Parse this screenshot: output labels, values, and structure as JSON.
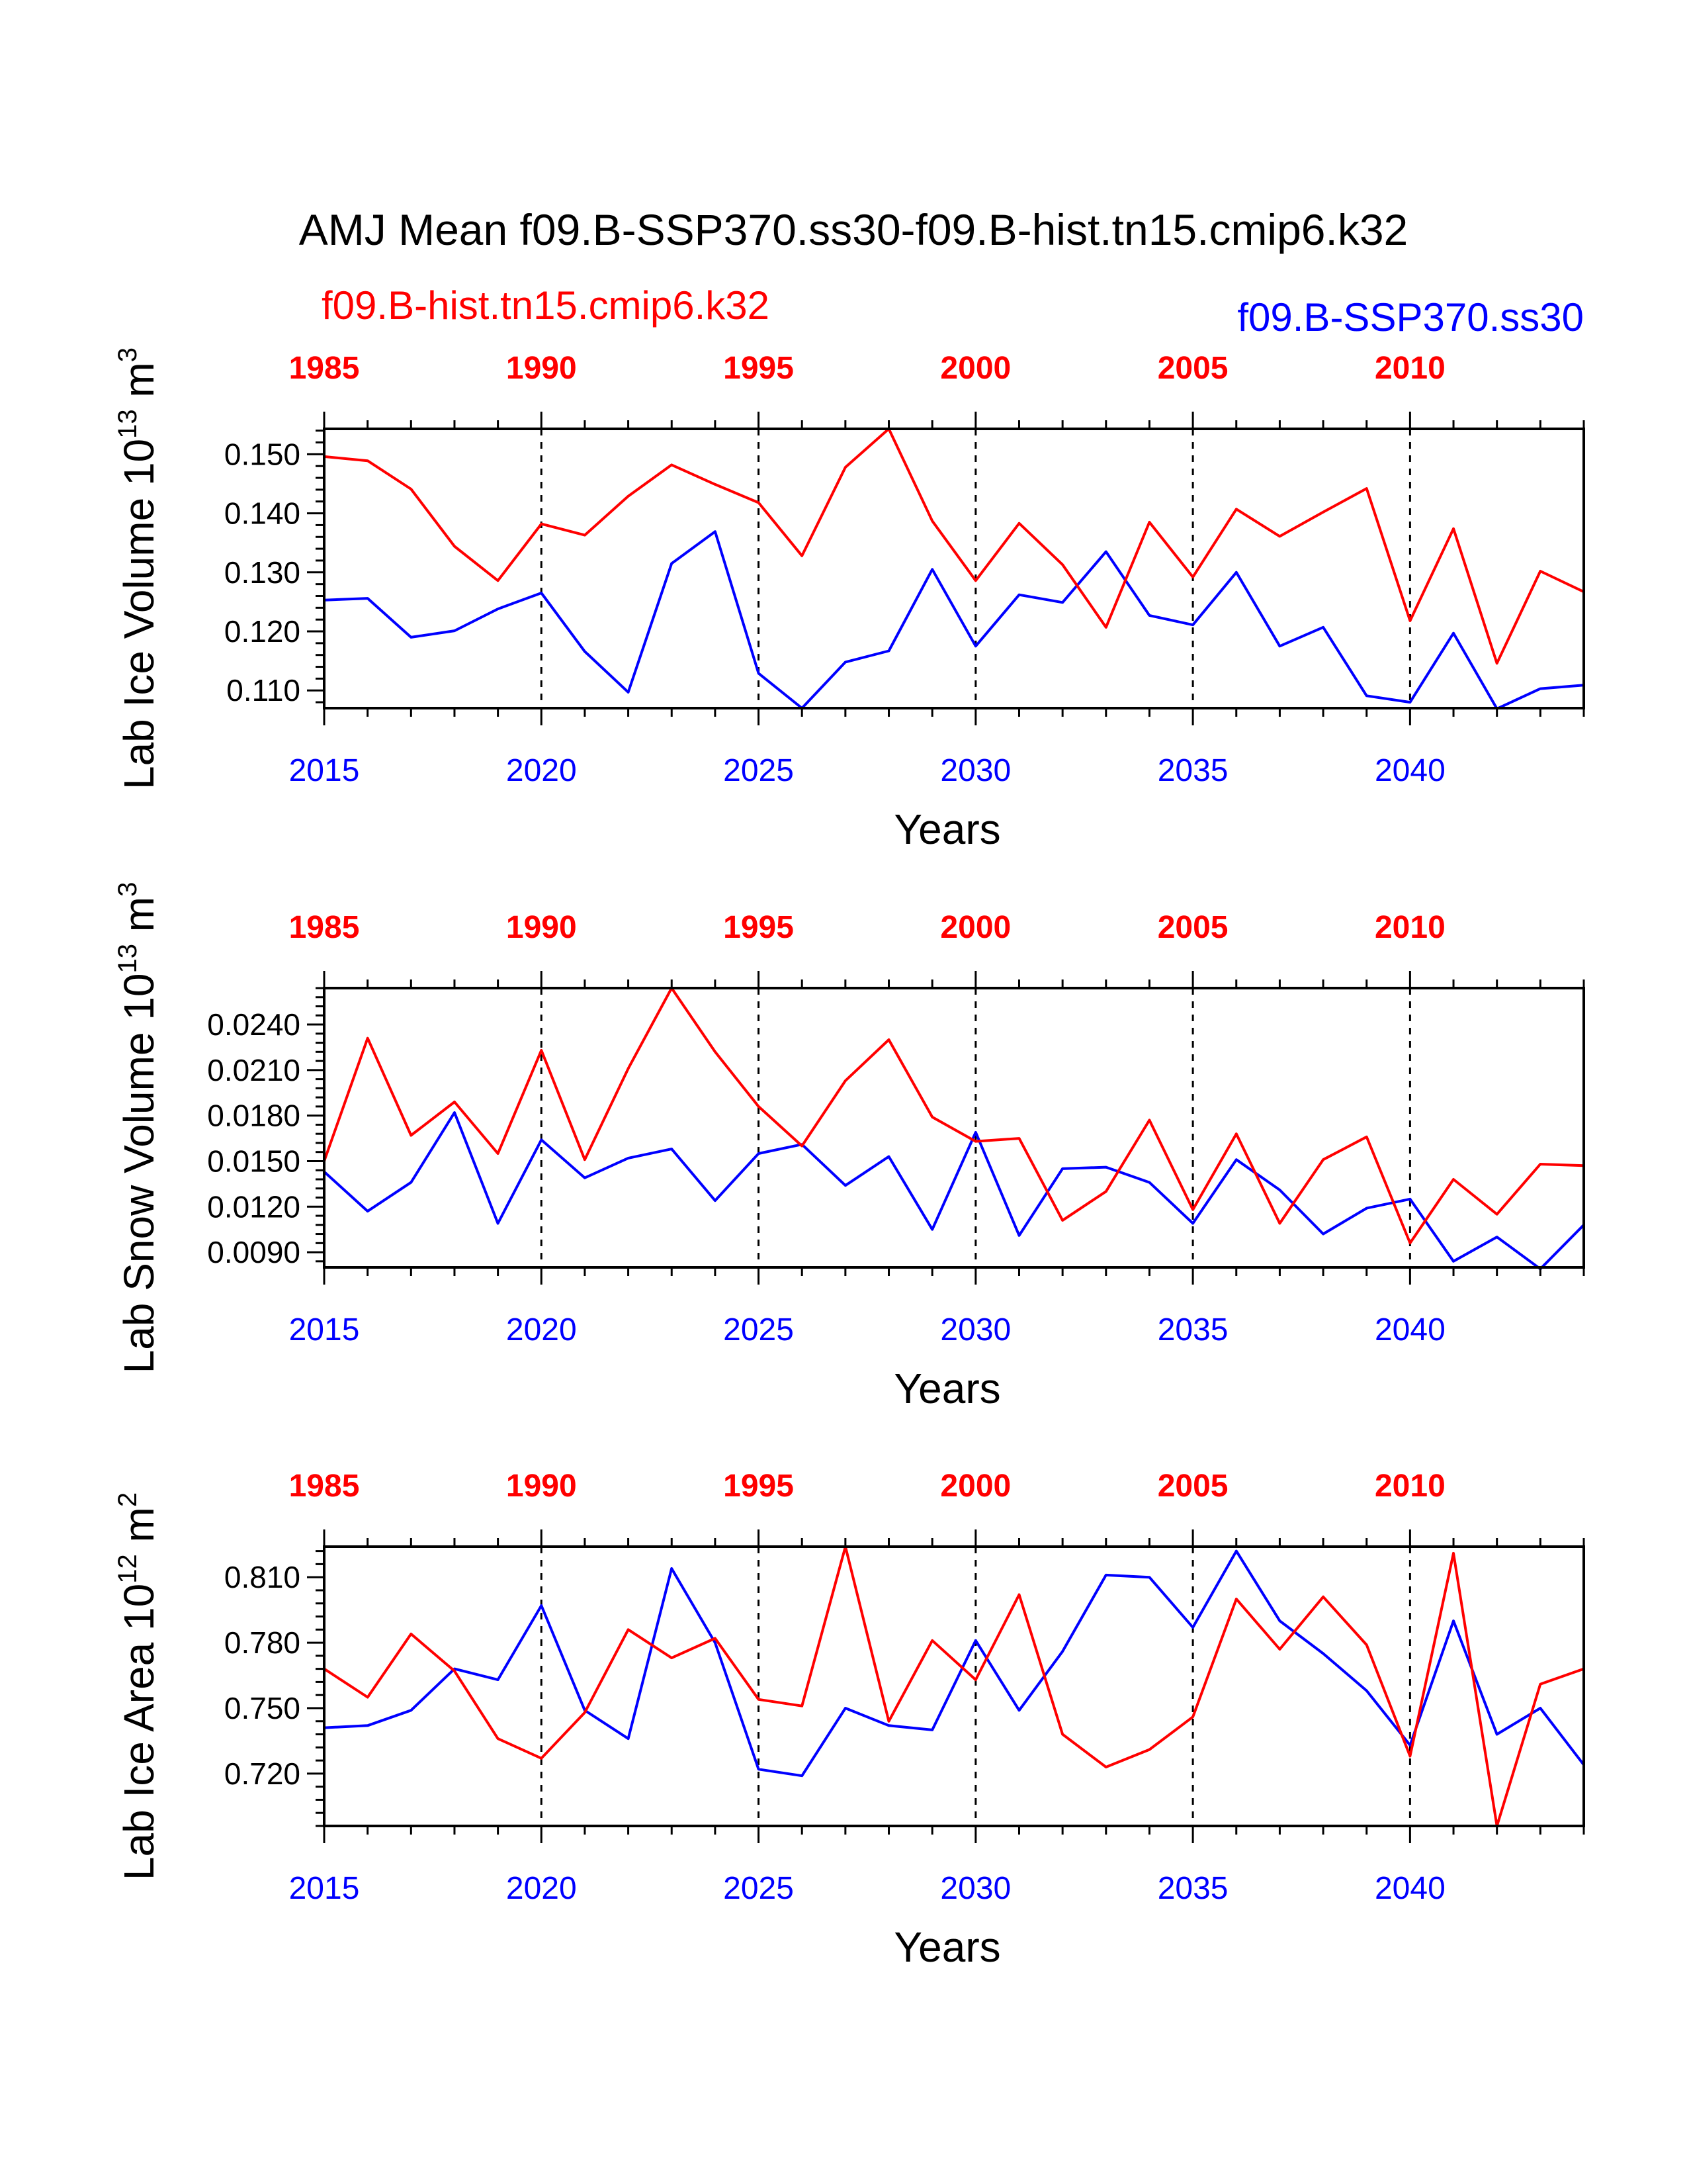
{
  "title": "AMJ Mean f09.B-SSP370.ss30-f09.B-hist.tn15.cmip6.k32",
  "legend": {
    "left_label": "f09.B-hist.tn15.cmip6.k32",
    "right_label": "f09.B-SSP370.ss30"
  },
  "colors": {
    "hist": "#ff0000",
    "ssp": "#0000ff",
    "axis": "#000000"
  },
  "chart_data": [
    {
      "type": "line",
      "ylabel": "Lab Ice Volume",
      "yunit_base": "10",
      "yunit_exp": "13",
      "yunit_tail": "m",
      "yunit_tail_exp": "3",
      "xlabel": "Years",
      "ylim": [
        0.107,
        0.1543
      ],
      "yticks": [
        "0.110",
        "0.120",
        "0.130",
        "0.140",
        "0.150"
      ],
      "bottom_axis_years": [
        "2015",
        "2020",
        "2025",
        "2030",
        "2035",
        "2040"
      ],
      "top_axis_years": [
        "1985",
        "1990",
        "1995",
        "2000",
        "2005",
        "2010"
      ],
      "series": [
        {
          "name": "f09.B-hist.tn15.cmip6.k32",
          "color": "#ff0000",
          "values": [
            0.1496,
            0.1489,
            0.1441,
            0.1344,
            0.1286,
            0.1382,
            0.1363,
            0.1429,
            0.1482,
            0.1449,
            0.1418,
            0.1328,
            0.1478,
            0.1543,
            0.1387,
            0.1286,
            0.1383,
            0.1313,
            0.1207,
            0.1385,
            0.1292,
            0.1407,
            0.1361,
            0.1402,
            0.1442,
            0.1218,
            0.1374,
            0.1146,
            0.1302,
            0.1267
          ]
        },
        {
          "name": "f09.B-SSP370.ss30",
          "color": "#0000ff",
          "values": [
            0.1253,
            0.1256,
            0.119,
            0.1201,
            0.1238,
            0.1265,
            0.1166,
            0.1097,
            0.1315,
            0.1369,
            0.1129,
            0.107,
            0.1148,
            0.1167,
            0.1305,
            0.1175,
            0.1262,
            0.1249,
            0.1335,
            0.1227,
            0.1211,
            0.13,
            0.1175,
            0.1207,
            0.1091,
            0.108,
            0.1197,
            0.1069,
            0.1103,
            0.1109
          ]
        }
      ]
    },
    {
      "type": "line",
      "ylabel": "Lab Snow Volume",
      "yunit_base": "10",
      "yunit_exp": "13",
      "yunit_tail": "m",
      "yunit_tail_exp": "3",
      "xlabel": "Years",
      "ylim": [
        0.008,
        0.0264
      ],
      "yticks": [
        "0.0090",
        "0.0120",
        "0.0150",
        "0.0180",
        "0.0210",
        "0.0240"
      ],
      "bottom_axis_years": [
        "2015",
        "2020",
        "2025",
        "2030",
        "2035",
        "2040"
      ],
      "top_axis_years": [
        "1985",
        "1990",
        "1995",
        "2000",
        "2005",
        "2010"
      ],
      "series": [
        {
          "name": "f09.B-hist.tn15.cmip6.k32",
          "color": "#ff0000",
          "values": [
            0.015,
            0.0231,
            0.0167,
            0.0189,
            0.0155,
            0.0223,
            0.0151,
            0.0211,
            0.0264,
            0.0222,
            0.0186,
            0.016,
            0.0203,
            0.023,
            0.0179,
            0.0163,
            0.0165,
            0.0111,
            0.013,
            0.0177,
            0.0118,
            0.0168,
            0.0109,
            0.0151,
            0.0166,
            0.0096,
            0.0138,
            0.0115,
            0.0148,
            0.0147
          ]
        },
        {
          "name": "f09.B-SSP370.ss30",
          "color": "#0000ff",
          "values": [
            0.0143,
            0.0117,
            0.0136,
            0.0182,
            0.0109,
            0.0164,
            0.0139,
            0.0152,
            0.0158,
            0.0124,
            0.0155,
            0.0161,
            0.0134,
            0.0153,
            0.0105,
            0.0169,
            0.0101,
            0.0145,
            0.0146,
            0.0136,
            0.0109,
            0.0151,
            0.0131,
            0.0102,
            0.0119,
            0.0125,
            0.0084,
            0.01,
            0.0079,
            0.0108
          ]
        }
      ]
    },
    {
      "type": "line",
      "ylabel": "Lab Ice Area",
      "yunit_base": "10",
      "yunit_exp": "12",
      "yunit_tail": "m",
      "yunit_tail_exp": "2",
      "xlabel": "Years",
      "ylim": [
        0.696,
        0.824
      ],
      "yticks": [
        "0.720",
        "0.750",
        "0.780",
        "0.810"
      ],
      "bottom_axis_years": [
        "2015",
        "2020",
        "2025",
        "2030",
        "2035",
        "2040"
      ],
      "top_axis_years": [
        "1985",
        "1990",
        "1995",
        "2000",
        "2005",
        "2010"
      ],
      "series": [
        {
          "name": "f09.B-hist.tn15.cmip6.k32",
          "color": "#ff0000",
          "values": [
            0.768,
            0.755,
            0.784,
            0.767,
            0.736,
            0.727,
            0.748,
            0.786,
            0.773,
            0.782,
            0.754,
            0.751,
            0.824,
            0.744,
            0.781,
            0.763,
            0.802,
            0.738,
            0.723,
            0.731,
            0.746,
            0.8,
            0.777,
            0.801,
            0.779,
            0.728,
            0.821,
            0.696,
            0.761,
            0.768
          ]
        },
        {
          "name": "f09.B-SSP370.ss30",
          "color": "#0000ff",
          "values": [
            0.741,
            0.742,
            0.749,
            0.768,
            0.763,
            0.797,
            0.749,
            0.736,
            0.814,
            0.78,
            0.722,
            0.719,
            0.75,
            0.742,
            0.74,
            0.781,
            0.749,
            0.776,
            0.811,
            0.81,
            0.787,
            0.822,
            0.79,
            0.775,
            0.758,
            0.733,
            0.79,
            0.738,
            0.75,
            0.724
          ]
        }
      ]
    }
  ]
}
